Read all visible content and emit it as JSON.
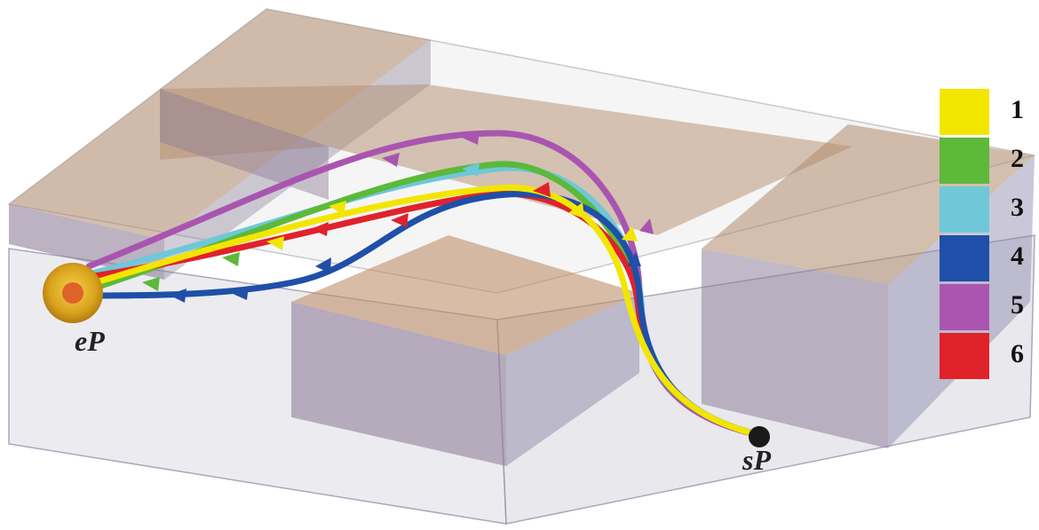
{
  "points": {
    "end": {
      "label": "eP",
      "color": "#d4a017"
    },
    "start": {
      "label": "sP",
      "color": "#1a1a1a"
    }
  },
  "legend": [
    {
      "label": "1",
      "color": "#f2e600"
    },
    {
      "label": "2",
      "color": "#5cb93a"
    },
    {
      "label": "3",
      "color": "#6ec8d8"
    },
    {
      "label": "4",
      "color": "#1f4fa8"
    },
    {
      "label": "5",
      "color": "#a955b0"
    },
    {
      "label": "6",
      "color": "#e0222b"
    }
  ]
}
